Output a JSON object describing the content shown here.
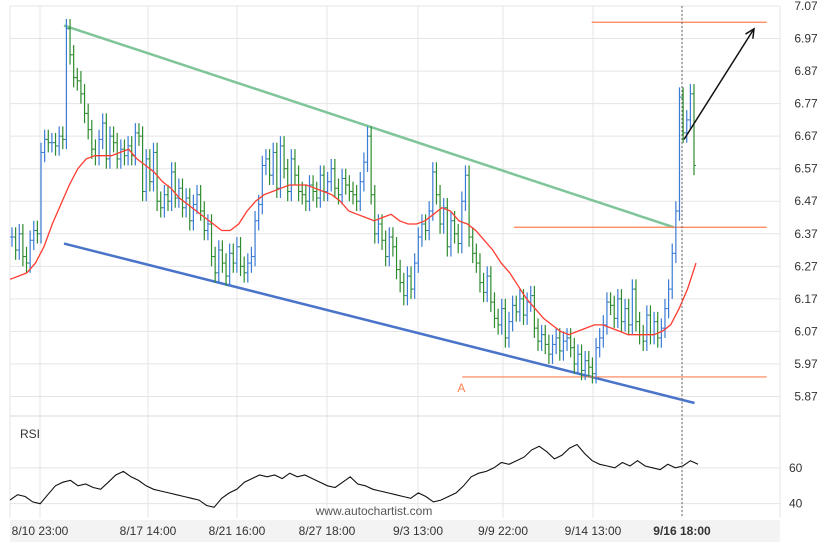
{
  "chart_data": [
    {
      "type": "ohlc",
      "title": "",
      "x_labels": [
        "8/10 23:00",
        "8/17 14:00",
        "8/21 16:00",
        "8/27 18:00",
        "9/3 13:00",
        "9/9 22:00",
        "9/14 13:00",
        "9/16 18:00"
      ],
      "x_labels_bold": [
        "9/16 18:00"
      ],
      "y_ticks": [
        5.87,
        5.97,
        6.07,
        6.17,
        6.27,
        6.37,
        6.47,
        6.57,
        6.67,
        6.77,
        6.87,
        6.97,
        7.07
      ],
      "ylim": [
        5.81,
        7.07
      ],
      "grid": true,
      "close_sequence": [
        6.36,
        6.32,
        6.37,
        6.3,
        6.28,
        6.35,
        6.38,
        6.37,
        6.62,
        6.66,
        6.65,
        6.65,
        6.64,
        6.67,
        6.66,
        7.0,
        6.92,
        6.85,
        6.84,
        6.8,
        6.74,
        6.69,
        6.63,
        6.61,
        6.66,
        6.71,
        6.6,
        6.67,
        6.65,
        6.6,
        6.63,
        6.61,
        6.64,
        6.61,
        6.68,
        6.67,
        6.5,
        6.6,
        6.53,
        6.62,
        6.47,
        6.45,
        6.49,
        6.47,
        6.56,
        6.48,
        6.51,
        6.45,
        6.48,
        6.41,
        6.46,
        6.49,
        6.44,
        6.38,
        6.4,
        6.3,
        6.25,
        6.32,
        6.28,
        6.24,
        6.31,
        6.28,
        6.33,
        6.27,
        6.25,
        6.28,
        6.3,
        6.41,
        6.46,
        6.58,
        6.6,
        6.55,
        6.62,
        6.51,
        6.64,
        6.57,
        6.5,
        6.6,
        6.55,
        6.5,
        6.49,
        6.47,
        6.52,
        6.5,
        6.48,
        6.55,
        6.5,
        6.53,
        6.57,
        6.51,
        6.49,
        6.54,
        6.52,
        6.5,
        6.49,
        6.47,
        6.53,
        6.59,
        6.67,
        6.49,
        6.37,
        6.4,
        6.35,
        6.3,
        6.36,
        6.33,
        6.26,
        6.22,
        6.18,
        6.24,
        6.2,
        6.28,
        6.36,
        6.4,
        6.38,
        6.44,
        6.56,
        6.49,
        6.4,
        6.45,
        6.33,
        6.41,
        6.37,
        6.34,
        6.47,
        6.55,
        6.36,
        6.31,
        6.28,
        6.22,
        6.19,
        6.24,
        6.16,
        6.11,
        6.09,
        6.14,
        6.05,
        6.1,
        6.15,
        6.13,
        6.17,
        6.12,
        6.16,
        6.18,
        6.08,
        6.04,
        6.06,
        6.03,
        6.0,
        6.03,
        6.05,
        6.01,
        6.04,
        6.05,
        6.02,
        5.97,
        6.0,
        5.95,
        5.98,
        5.96,
        5.94,
        6.02,
        6.05,
        6.09,
        6.16,
        6.15,
        6.11,
        6.17,
        6.1,
        6.14,
        6.09,
        6.2,
        6.1,
        6.06,
        6.04,
        6.12,
        6.06,
        6.1,
        6.05,
        6.08,
        6.14,
        6.2,
        6.31,
        6.44,
        6.79,
        6.68,
        6.72,
        6.8,
        6.58
      ],
      "moving_average": [
        6.23,
        6.24,
        6.25,
        6.28,
        6.33,
        6.4,
        6.46,
        6.52,
        6.57,
        6.6,
        6.61,
        6.61,
        6.61,
        6.62,
        6.63,
        6.6,
        6.58,
        6.56,
        6.53,
        6.51,
        6.48,
        6.46,
        6.44,
        6.42,
        6.4,
        6.38,
        6.38,
        6.4,
        6.44,
        6.47,
        6.49,
        6.5,
        6.51,
        6.52,
        6.52,
        6.52,
        6.51,
        6.5,
        6.49,
        6.47,
        6.44,
        6.43,
        6.42,
        6.41,
        6.42,
        6.43,
        6.41,
        6.4,
        6.4,
        6.41,
        6.43,
        6.45,
        6.44,
        6.41,
        6.4,
        6.38,
        6.35,
        6.32,
        6.28,
        6.25,
        6.21,
        6.17,
        6.14,
        6.11,
        6.09,
        6.07,
        6.06,
        6.07,
        6.08,
        6.09,
        6.09,
        6.08,
        6.07,
        6.06,
        6.06,
        6.06,
        6.06,
        6.07,
        6.09,
        6.14,
        6.2,
        6.28
      ],
      "trend_upper": {
        "from": {
          "x_frac": 0.0,
          "y": 7.01
        },
        "to": {
          "x_frac": 0.736,
          "y": 6.39
        }
      },
      "trend_lower": {
        "from": {
          "x_frac": 0.0,
          "y": 6.34
        },
        "to": {
          "x_frac": 0.772,
          "y": 5.85
        }
      },
      "levels": [
        {
          "y": 7.02,
          "x_from_frac": 0.85,
          "x_to_frac": 0.96
        },
        {
          "y": 6.39,
          "x_from_frac": 0.736,
          "x_to_frac": 0.96
        },
        {
          "y": 5.93,
          "x_from_frac": 0.66,
          "x_to_frac": 0.96
        }
      ],
      "point_label": {
        "text": "A",
        "x_frac": 0.659,
        "y": 5.93
      },
      "projection": {
        "from": {
          "x_frac": 0.812,
          "y": 6.66
        },
        "to": {
          "x_frac": 0.955,
          "y": 7.0
        }
      },
      "colors": {
        "bar_up": "#3a7bd5",
        "bar_down": "#2e8b2e",
        "moving_average": "#ff3b30",
        "upper_channel": "#7fc59a",
        "lower_channel": "#4a74c9",
        "levels": "#ff7f50",
        "projection": "#111111",
        "grid": "#e5e5e5",
        "cursor": "#666666"
      }
    },
    {
      "type": "line",
      "label": "RSI",
      "y_ticks": [
        40,
        60
      ],
      "ylim": [
        32,
        80
      ],
      "values": [
        42,
        45,
        44,
        41,
        40,
        45,
        50,
        52,
        53,
        50,
        51,
        49,
        48,
        52,
        56,
        58,
        55,
        53,
        50,
        48,
        47,
        46,
        45,
        44,
        43,
        42,
        39,
        38,
        43,
        46,
        48,
        52,
        54,
        56,
        55,
        56,
        54,
        57,
        55,
        56,
        54,
        52,
        50,
        49,
        52,
        55,
        51,
        50,
        48,
        47,
        46,
        45,
        44,
        43,
        46,
        44,
        41,
        42,
        44,
        46,
        50,
        55,
        57,
        58,
        60,
        63,
        62,
        64,
        66,
        70,
        72,
        69,
        65,
        67,
        71,
        73,
        68,
        64,
        62,
        61,
        60,
        63,
        61,
        64,
        61,
        60,
        59,
        62,
        60,
        61,
        64,
        62
      ]
    }
  ],
  "watermark": "www.autochartist.com",
  "rsi_title": "RSI"
}
